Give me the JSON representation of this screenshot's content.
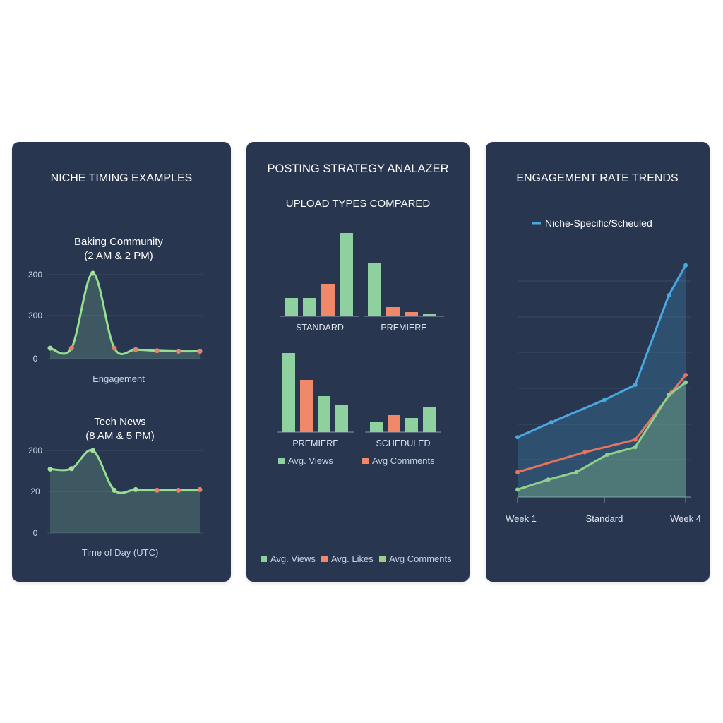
{
  "panels": {
    "timing": {
      "title": "NICHE TIMING EXAMPLES"
    },
    "strategy": {
      "title": "POSTING STRATEGY ANALAZER",
      "subtitle": "UPLOAD TYPES COMPARED"
    },
    "engagement": {
      "title": "ENGAGEMENT RATE TRENDS"
    }
  },
  "chart_data": [
    {
      "id": "baking",
      "type": "line",
      "title": "Baking Community",
      "subtitle": "(2 AM & 2 PM)",
      "xlabel": "Engagement",
      "ylabel": "",
      "yticks": [
        "300",
        "200",
        "0"
      ],
      "ylim": [
        0,
        300
      ],
      "grid": true,
      "series": [
        {
          "values": [
            [
              0,
              37
            ],
            [
              1,
              37
            ],
            [
              2,
              300
            ],
            [
              3,
              37
            ],
            [
              4,
              32
            ],
            [
              5,
              28
            ],
            [
              6,
              26
            ],
            [
              7,
              26
            ]
          ],
          "markers": [
            "#a3e09f",
            "#e8806a",
            "#a3e09f",
            "#e8806a",
            "#e8806a",
            "#e8806a",
            "#e8806a",
            "#e8806a"
          ]
        }
      ]
    },
    {
      "id": "technews",
      "type": "line",
      "title": "Tech News",
      "subtitle": "(8 AM & 5 PM)",
      "xlabel": "Time of Day (UTC)",
      "ylabel": "",
      "yticks": [
        "200",
        "20",
        "0"
      ],
      "grid": true,
      "series": [
        {
          "values": [
            [
              0,
              118
            ],
            [
              1,
              120
            ],
            [
              2,
              200
            ],
            [
              3,
              25
            ],
            [
              4,
              28
            ],
            [
              5,
              25
            ],
            [
              6,
              25
            ],
            [
              7,
              28
            ]
          ],
          "markers": [
            "#a3e09f",
            "#a3e09f",
            "#a3e09f",
            "#a3e09f",
            "#a3e09f",
            "#e8806a",
            "#e8806a",
            "#e8806a"
          ]
        }
      ]
    },
    {
      "id": "upload-top",
      "type": "bar",
      "groups": [
        {
          "label": "STANDARD",
          "values": [
            {
              "value": 26,
              "color": "#8fd19e"
            },
            {
              "value": 26,
              "color": "#8fd19e"
            },
            {
              "value": 46,
              "color": "#f0896a"
            },
            {
              "value": 118,
              "color": "#8fd19e"
            }
          ]
        },
        {
          "label": "PREMIERE",
          "values": [
            {
              "value": 75,
              "color": "#8fd19e"
            },
            {
              "value": 13,
              "color": "#f0896a"
            },
            {
              "value": 6,
              "color": "#f0896a"
            },
            {
              "value": 3,
              "color": "#8fd19e"
            }
          ]
        }
      ]
    },
    {
      "id": "upload-bottom",
      "type": "bar",
      "groups": [
        {
          "label": "PREMIERE",
          "values": [
            {
              "value": 112,
              "color": "#8fd19e"
            },
            {
              "value": 74,
              "color": "#f0896a"
            },
            {
              "value": 51,
              "color": "#8fd19e"
            },
            {
              "value": 38,
              "color": "#8fd19e"
            }
          ]
        },
        {
          "label": "SCHEDULED",
          "values": [
            {
              "value": 14,
              "color": "#8fd19e"
            },
            {
              "value": 24,
              "color": "#f0896a"
            },
            {
              "value": 20,
              "color": "#8fd19e"
            },
            {
              "value": 36,
              "color": "#8fd19e"
            }
          ]
        }
      ],
      "legend": [
        {
          "label": "Avg. Views",
          "color": "#8fd19e"
        },
        {
          "label": "Avg Comments",
          "color": "#f0896a"
        }
      ]
    },
    {
      "id": "engagement-trends",
      "type": "area",
      "xticks": [
        {
          "label": "Week 1",
          "x": 0
        },
        {
          "label": "Standard",
          "x": 1.55
        },
        {
          "label": "Week 4",
          "x": 3
        }
      ],
      "xlim": [
        0,
        3.1
      ],
      "ylim": [
        0,
        100
      ],
      "grid": true,
      "legend": [
        {
          "label": "Niche-Specific/Scheuled",
          "color": "#4aa8e0"
        }
      ],
      "series": [
        {
          "color": "#4aa8e0",
          "fill": true,
          "values": [
            [
              0,
              24
            ],
            [
              0.6,
              30
            ],
            [
              1.55,
              39
            ],
            [
              2.1,
              45
            ],
            [
              2.7,
              81
            ],
            [
              3,
              93
            ]
          ]
        },
        {
          "color": "#e8745f",
          "fill": false,
          "values": [
            [
              0,
              10
            ],
            [
              1.2,
              18
            ],
            [
              2.1,
              23
            ],
            [
              2.75,
              42
            ],
            [
              3,
              49
            ]
          ]
        },
        {
          "color": "#8ed18a",
          "fill": true,
          "values": [
            [
              0,
              3
            ],
            [
              0.55,
              7
            ],
            [
              1.05,
              10
            ],
            [
              1.6,
              17
            ],
            [
              2.1,
              20
            ],
            [
              2.7,
              41
            ],
            [
              3,
              46
            ]
          ]
        }
      ]
    }
  ],
  "bottom_legend": [
    {
      "label": "Avg. Views",
      "color": "#8fd19e"
    },
    {
      "label": "Avg. Likes",
      "color": "#f0896a"
    },
    {
      "label": "Avg Comments",
      "color": "#9ccf86"
    }
  ]
}
